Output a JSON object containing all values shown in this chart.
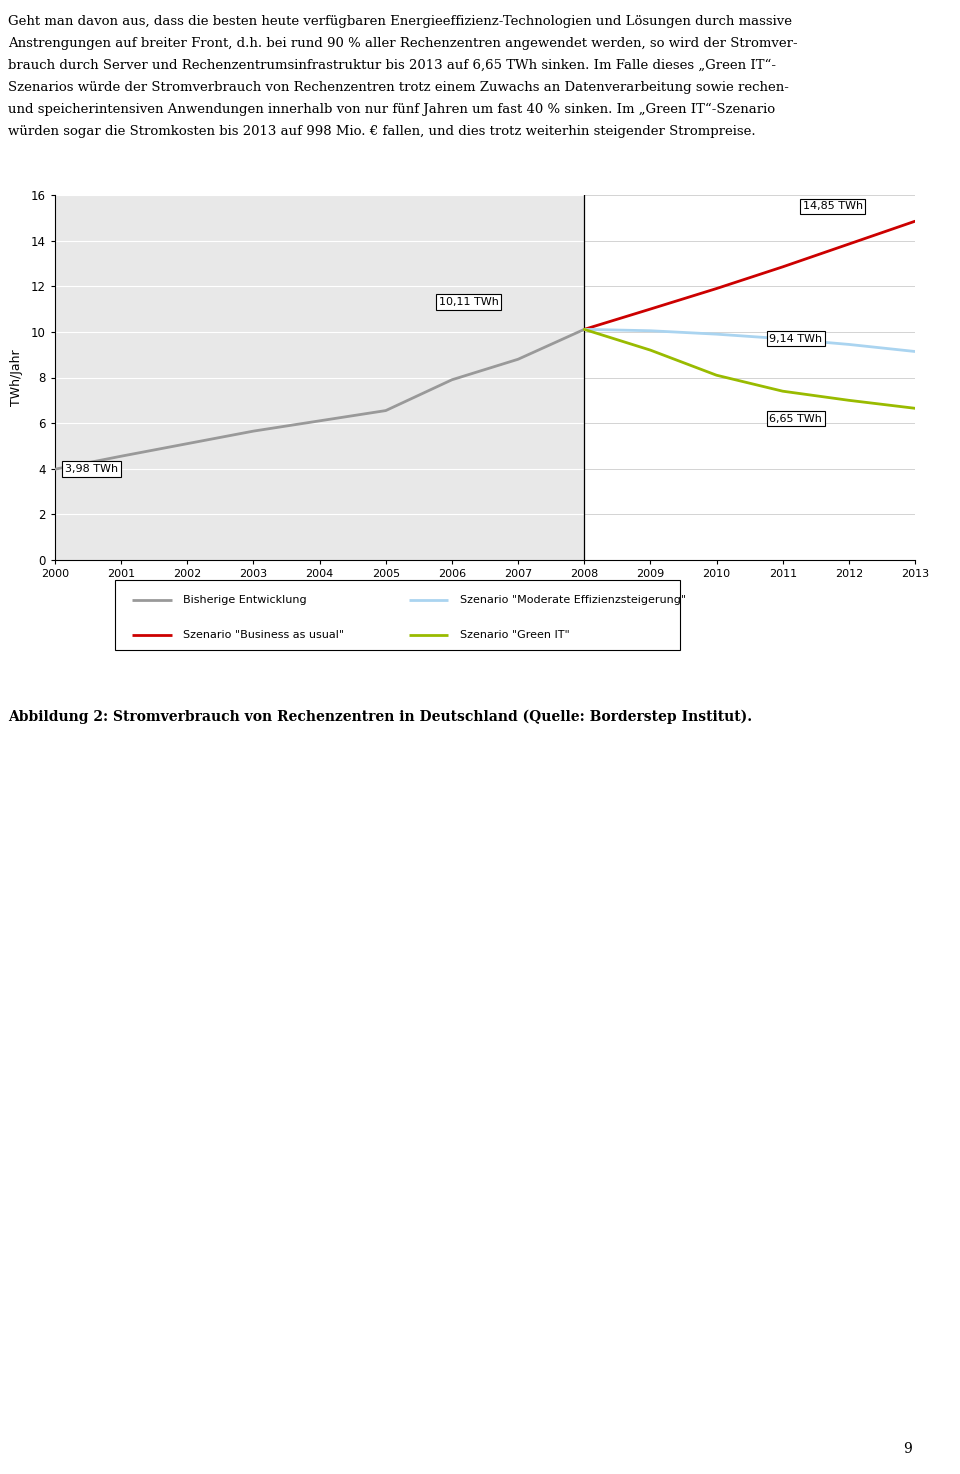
{
  "text_lines": [
    "Geht man davon aus, dass die besten heute verfügbaren Energieeffizienz-Technologien und Lösungen durch massive",
    "Anstrengungen auf breiter Front, d.h. bei rund 90 % aller Rechenzentren angewendet werden, so wird der Stromver-",
    "brauch durch Server und Rechenzentrumsinfrastruktur bis 2013 auf 6,65 TWh sinken. Im Falle dieses „Green IT“-",
    "Szenarios würde der Stromverbrauch von Rechenzentren trotz einem Zuwachs an Datenverarbeitung sowie rechen-",
    "und speicherintensiven Anwendungen innerhalb von nur fünf Jahren um fast 40 % sinken. Im „Green IT“-Szenario",
    "würden sogar die Stromkosten bis 2013 auf 998 Mio. € fallen, und dies trotz weiterhin steigender Strompreise."
  ],
  "caption": "Abbildung 2: Stromverbrauch von Rechenzentren in Deutschland (Quelle: Borderstep Institut).",
  "page_number": "9",
  "ylabel": "TWh/Jahr",
  "ylim": [
    0,
    16
  ],
  "yticks": [
    0,
    2,
    4,
    6,
    8,
    10,
    12,
    14,
    16
  ],
  "xlim": [
    2000,
    2013
  ],
  "xticks": [
    2000,
    2001,
    2002,
    2003,
    2004,
    2005,
    2006,
    2007,
    2008,
    2009,
    2010,
    2011,
    2012,
    2013
  ],
  "bg_left_color": "#e8e8e8",
  "bg_right_color": "#ffffff",
  "split_year": 2008,
  "bisherige_x": [
    2000,
    2001,
    2002,
    2003,
    2004,
    2005,
    2006,
    2007,
    2008
  ],
  "bisherige_y": [
    3.98,
    4.55,
    5.1,
    5.65,
    6.1,
    6.55,
    7.9,
    8.8,
    10.11
  ],
  "bau_x": [
    2008,
    2009,
    2010,
    2011,
    2012,
    2013
  ],
  "bau_y": [
    10.11,
    11.0,
    11.9,
    12.85,
    13.85,
    14.85
  ],
  "moderate_x": [
    2008,
    2009,
    2010,
    2011,
    2012,
    2013
  ],
  "moderate_y": [
    10.11,
    10.05,
    9.9,
    9.7,
    9.45,
    9.14
  ],
  "green_x": [
    2008,
    2009,
    2010,
    2011,
    2012,
    2013
  ],
  "green_y": [
    10.11,
    9.2,
    8.1,
    7.4,
    7.0,
    6.65
  ],
  "bisherige_color": "#999999",
  "bau_color": "#cc0000",
  "moderate_color": "#aad4f0",
  "green_color": "#99bb00",
  "annotation_3_98": "3,98 TWh",
  "annotation_10_11": "10,11 TWh",
  "annotation_14_85": "14,85 TWh",
  "annotation_9_14": "9,14 TWh",
  "annotation_6_65": "6,65 TWh",
  "legend_bisherige": "Bisherige Entwicklung",
  "legend_bau": "Szenario \"Business as usual\"",
  "legend_moderate": "Szenario \"Moderate Effizienzsteigerung\"",
  "legend_green": "Szenario \"Green IT\""
}
